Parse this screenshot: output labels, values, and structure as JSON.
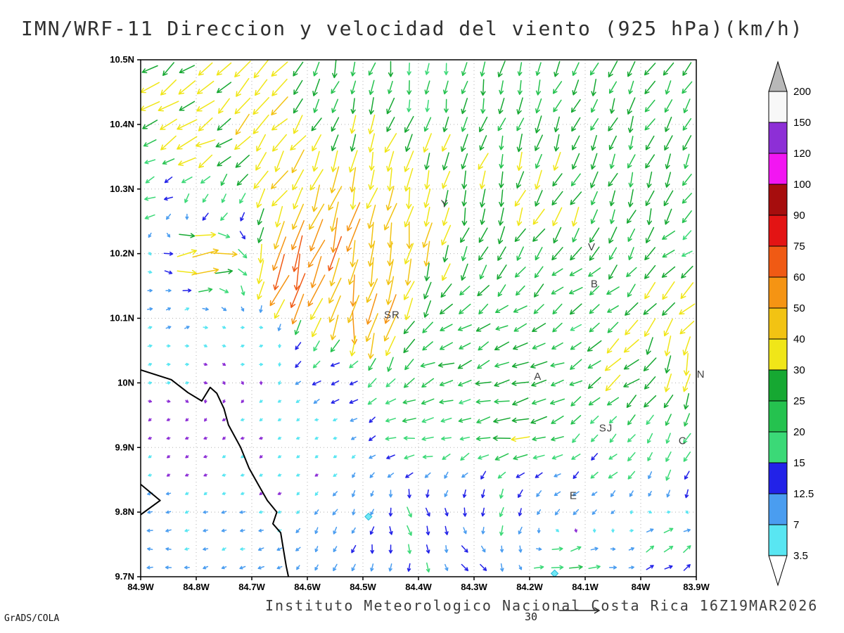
{
  "title": "IMN/WRF-11 Direccion y velocidad del viento (925 hPa)(km/h)",
  "footer": "Instituto Meteorologico Nacional Costa Rica 16Z19MAR2026",
  "credit": "GrADS/COLA",
  "chart_data": {
    "type": "vector-map",
    "title": "IMN/WRF-11 Direccion y velocidad del viento (925 hPa)(km/h)",
    "units": "km/h",
    "level": "925 hPa",
    "valid_time": "16Z19MAR2026",
    "proj": {
      "lon_west": 84.9,
      "lon_east": 83.9,
      "lat_south": 9.7,
      "lat_north": 10.5
    },
    "x_ticks": [
      {
        "v": 84.9,
        "label": "84.9W"
      },
      {
        "v": 84.8,
        "label": "84.8W"
      },
      {
        "v": 84.7,
        "label": "84.7W"
      },
      {
        "v": 84.6,
        "label": "84.6W"
      },
      {
        "v": 84.5,
        "label": "84.5W"
      },
      {
        "v": 84.4,
        "label": "84.4W"
      },
      {
        "v": 84.3,
        "label": "84.3W"
      },
      {
        "v": 84.2,
        "label": "84.2W"
      },
      {
        "v": 84.1,
        "label": "84.1W"
      },
      {
        "v": 84.0,
        "label": "84W"
      },
      {
        "v": 83.9,
        "label": "83.9W"
      }
    ],
    "y_ticks": [
      {
        "v": 10.5,
        "label": "10.5N"
      },
      {
        "v": 10.4,
        "label": "10.4N"
      },
      {
        "v": 10.3,
        "label": "10.3N"
      },
      {
        "v": 10.2,
        "label": "10.2N"
      },
      {
        "v": 10.1,
        "label": "10.1N"
      },
      {
        "v": 10.0,
        "label": "10N"
      },
      {
        "v": 9.9,
        "label": "9.9N"
      },
      {
        "v": 9.8,
        "label": "9.8N"
      },
      {
        "v": 9.7,
        "label": "9.7N"
      }
    ],
    "grid": {
      "cols": 30,
      "rows": 28
    },
    "reference_vector": {
      "speed": 30,
      "label": "30"
    },
    "palette": {
      "levels": [
        3.5,
        7,
        12.5,
        15,
        20,
        25,
        30,
        40,
        50,
        60,
        75,
        90,
        100,
        120,
        150,
        200
      ],
      "band_colors": [
        "#59e6f2",
        "#4a9df0",
        "#2222e8",
        "#3bd977",
        "#25c24f",
        "#16a832",
        "#f0e618",
        "#f2c313",
        "#f59413",
        "#f05a14",
        "#e31414",
        "#a60d0d",
        "#f216f2",
        "#8d2fd6",
        "#f8f8f8"
      ],
      "bar_under": "#ffffff",
      "bar_over": "#b8b8b8",
      "arrow_under": "#8d2fd6"
    },
    "stations": [
      {
        "label": "Y",
        "lon": 84.36,
        "lat": 10.272
      },
      {
        "label": "V",
        "lon": 84.095,
        "lat": 10.205
      },
      {
        "label": "B",
        "lon": 84.09,
        "lat": 10.148
      },
      {
        "label": "SR",
        "lon": 84.462,
        "lat": 10.1
      },
      {
        "label": "A",
        "lon": 84.192,
        "lat": 10.005
      },
      {
        "label": "SJ",
        "lon": 84.075,
        "lat": 9.925
      },
      {
        "label": "C",
        "lon": 83.932,
        "lat": 9.905
      },
      {
        "label": "E",
        "lon": 84.128,
        "lat": 9.82
      },
      {
        "label": "N",
        "lon": 83.899,
        "lat": 10.008
      }
    ],
    "coastlines": [
      [
        [
          84.9,
          10.02
        ],
        [
          84.845,
          10.005
        ],
        [
          84.815,
          9.985
        ],
        [
          84.79,
          9.972
        ],
        [
          84.775,
          9.993
        ],
        [
          84.763,
          9.984
        ],
        [
          84.75,
          9.96
        ],
        [
          84.742,
          9.935
        ],
        [
          84.72,
          9.9
        ],
        [
          84.705,
          9.868
        ],
        [
          84.688,
          9.842
        ],
        [
          84.672,
          9.818
        ],
        [
          84.655,
          9.8
        ],
        [
          84.662,
          9.782
        ],
        [
          84.648,
          9.768
        ],
        [
          84.643,
          9.742
        ],
        [
          84.638,
          9.716
        ],
        [
          84.634,
          9.7
        ]
      ],
      [
        [
          84.9,
          9.843
        ],
        [
          84.865,
          9.818
        ],
        [
          84.9,
          9.796
        ]
      ]
    ],
    "low_speed_markers": {
      "fill": "#6fe8f5",
      "stroke": "#2ab8d9",
      "points": [
        {
          "lon": 84.49,
          "lat": 9.793
        },
        {
          "lon": 84.155,
          "lat": 9.705
        }
      ]
    },
    "control_point_format": [
      "lon_w",
      "lat",
      "u_kmh_east",
      "v_kmh_north"
    ],
    "flow_control_points": [
      [
        84.87,
        10.47,
        -26,
        -20
      ],
      [
        84.8,
        10.38,
        -30,
        -18
      ],
      [
        84.68,
        10.42,
        -26,
        -26
      ],
      [
        84.55,
        10.45,
        -8,
        -24
      ],
      [
        84.4,
        10.46,
        -4,
        -20
      ],
      [
        84.24,
        10.44,
        -7,
        -24
      ],
      [
        84.08,
        10.44,
        -10,
        -24
      ],
      [
        83.93,
        10.42,
        -13,
        -22
      ],
      [
        84.88,
        10.29,
        -15,
        -6
      ],
      [
        84.77,
        10.27,
        -10,
        -14
      ],
      [
        84.78,
        10.205,
        46,
        5
      ],
      [
        84.62,
        10.17,
        -22,
        -62
      ],
      [
        84.55,
        10.23,
        -14,
        -52
      ],
      [
        84.5,
        10.1,
        -8,
        -54
      ],
      [
        84.44,
        10.24,
        -10,
        -42
      ],
      [
        84.45,
        10.34,
        -10,
        -33
      ],
      [
        84.63,
        10.31,
        -22,
        -34
      ],
      [
        84.3,
        10.3,
        -8,
        -26
      ],
      [
        84.15,
        10.28,
        -14,
        -26
      ],
      [
        84.0,
        10.28,
        -9,
        -26
      ],
      [
        83.91,
        10.21,
        -17,
        -12
      ],
      [
        83.93,
        10.12,
        -23,
        -25
      ],
      [
        84.1,
        10.12,
        -18,
        -14
      ],
      [
        84.85,
        10.1,
        7,
        2.5
      ],
      [
        84.7,
        10.06,
        5,
        1.5
      ],
      [
        84.85,
        10.01,
        6,
        1
      ],
      [
        84.55,
        10.0,
        -14,
        -4
      ],
      [
        84.35,
        10.03,
        -22,
        -8
      ],
      [
        84.2,
        10.0,
        -27,
        -5
      ],
      [
        84.02,
        10.02,
        -25,
        -21
      ],
      [
        83.94,
        10.04,
        -7,
        -33
      ],
      [
        84.85,
        9.93,
        -3,
        -1.4
      ],
      [
        84.7,
        9.92,
        -3.2,
        -1.6
      ],
      [
        84.58,
        9.92,
        -4,
        -1.2
      ],
      [
        84.4,
        9.93,
        -20,
        -2
      ],
      [
        84.22,
        9.93,
        -27,
        -3
      ],
      [
        84.06,
        9.9,
        -12,
        -11
      ],
      [
        83.92,
        9.88,
        -8,
        -15
      ],
      [
        84.82,
        9.87,
        -2.2,
        -1.1
      ],
      [
        84.68,
        9.84,
        -2.6,
        -1.4
      ],
      [
        84.6,
        9.87,
        -3,
        -2
      ],
      [
        84.86,
        9.8,
        -8,
        -2
      ],
      [
        84.72,
        9.78,
        -7.5,
        -2.5
      ],
      [
        84.56,
        9.79,
        -5,
        -10
      ],
      [
        84.4,
        9.78,
        4,
        -16
      ],
      [
        84.25,
        9.8,
        -4,
        -14
      ],
      [
        84.12,
        9.82,
        -9,
        -7
      ],
      [
        84.88,
        9.72,
        -9,
        1
      ],
      [
        84.7,
        9.71,
        -8.5,
        -2
      ],
      [
        84.5,
        9.71,
        -3,
        -13
      ],
      [
        84.3,
        9.72,
        7,
        -11
      ],
      [
        84.13,
        9.715,
        21,
        4
      ],
      [
        83.95,
        9.74,
        13,
        8
      ]
    ]
  }
}
